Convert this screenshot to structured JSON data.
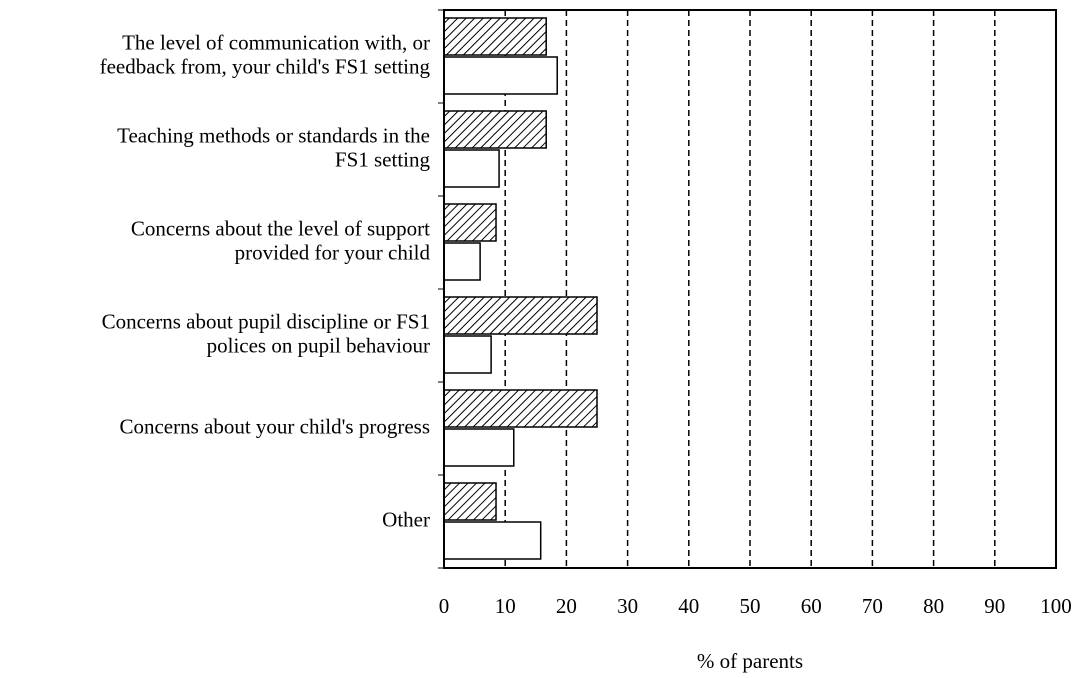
{
  "chart_data": {
    "type": "hbar",
    "categories": [
      [
        "The level of communication with, or",
        "feedback from, your child's FS1 setting"
      ],
      [
        "Teaching methods or standards in the",
        "FS1 setting"
      ],
      [
        "Concerns about the level of support",
        "provided for your child"
      ],
      [
        "Concerns about pupil discipline or FS1",
        "polices on pupil behaviour"
      ],
      [
        "Concerns about your child's progress"
      ],
      [
        "Other"
      ]
    ],
    "series": [
      {
        "color": "#000000",
        "hatch": true,
        "values": [
          16.7,
          16.7,
          8.5,
          25,
          25,
          8.5
        ]
      },
      {
        "color": "#ffffff",
        "hatch": false,
        "values": [
          18.5,
          9,
          5.9,
          7.7,
          11.4,
          15.8
        ]
      }
    ],
    "xlim": [
      0,
      100
    ],
    "xticks": [
      0,
      10,
      20,
      30,
      40,
      50,
      60,
      70,
      80,
      90,
      100
    ],
    "grid": true,
    "grid_style": "dashed",
    "xlabel": "% of parents"
  }
}
